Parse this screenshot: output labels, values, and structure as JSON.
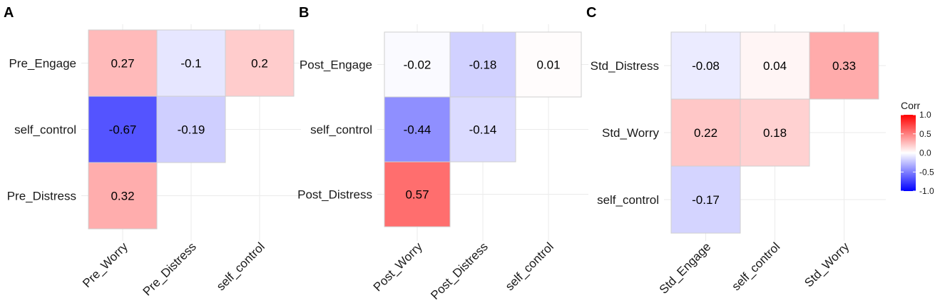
{
  "chart_data": [
    {
      "type": "heatmap",
      "panel": "A",
      "x_categories": [
        "Pre_Worry",
        "Pre_Distress",
        "self_control"
      ],
      "y_categories": [
        "Pre_Engage",
        "self_control",
        "Pre_Distress"
      ],
      "cells": [
        {
          "x": "Pre_Worry",
          "y": "Pre_Engage",
          "value": 0.27,
          "label": "0.27"
        },
        {
          "x": "Pre_Distress",
          "y": "Pre_Engage",
          "value": -0.1,
          "label": "-0.1"
        },
        {
          "x": "self_control",
          "y": "Pre_Engage",
          "value": 0.2,
          "label": "0.2"
        },
        {
          "x": "Pre_Worry",
          "y": "self_control",
          "value": -0.67,
          "label": "-0.67"
        },
        {
          "x": "Pre_Distress",
          "y": "self_control",
          "value": -0.19,
          "label": "-0.19"
        },
        {
          "x": "Pre_Worry",
          "y": "Pre_Distress",
          "value": 0.32,
          "label": "0.32"
        }
      ]
    },
    {
      "type": "heatmap",
      "panel": "B",
      "x_categories": [
        "Post_Worry",
        "Post_Distress",
        "self_control"
      ],
      "y_categories": [
        "Post_Engage",
        "self_control",
        "Post_Distress"
      ],
      "cells": [
        {
          "x": "Post_Worry",
          "y": "Post_Engage",
          "value": -0.02,
          "label": "-0.02"
        },
        {
          "x": "Post_Distress",
          "y": "Post_Engage",
          "value": -0.18,
          "label": "-0.18"
        },
        {
          "x": "self_control",
          "y": "Post_Engage",
          "value": 0.01,
          "label": "0.01"
        },
        {
          "x": "Post_Worry",
          "y": "self_control",
          "value": -0.44,
          "label": "-0.44"
        },
        {
          "x": "Post_Distress",
          "y": "self_control",
          "value": -0.14,
          "label": "-0.14"
        },
        {
          "x": "Post_Worry",
          "y": "Post_Distress",
          "value": 0.57,
          "label": "0.57"
        }
      ]
    },
    {
      "type": "heatmap",
      "panel": "C",
      "x_categories": [
        "Std_Engage",
        "self_control",
        "Std_Worry"
      ],
      "y_categories": [
        "Std_Distress",
        "Std_Worry",
        "self_control"
      ],
      "cells": [
        {
          "x": "Std_Engage",
          "y": "Std_Distress",
          "value": -0.08,
          "label": "-0.08"
        },
        {
          "x": "self_control",
          "y": "Std_Distress",
          "value": 0.04,
          "label": "0.04"
        },
        {
          "x": "Std_Worry",
          "y": "Std_Distress",
          "value": 0.33,
          "label": "0.33"
        },
        {
          "x": "Std_Engage",
          "y": "Std_Worry",
          "value": 0.22,
          "label": "0.22"
        },
        {
          "x": "self_control",
          "y": "Std_Worry",
          "value": 0.18,
          "label": "0.18"
        },
        {
          "x": "Std_Engage",
          "y": "self_control",
          "value": -0.17,
          "label": "-0.17"
        }
      ]
    }
  ],
  "legend": {
    "title": "Corr",
    "ticks": [
      "1.0",
      "0.5",
      "0.0",
      "-0.5",
      "-1.0"
    ],
    "tick_values": [
      1.0,
      0.5,
      0.0,
      -0.5,
      -1.0
    ],
    "range": [
      -1.0,
      1.0
    ],
    "colors": {
      "high": "#ff0000",
      "mid": "#ffffff",
      "low": "#0000ff"
    }
  },
  "colors": {
    "grid": "#ebebeb",
    "tile_border": "#cfcfcf"
  }
}
